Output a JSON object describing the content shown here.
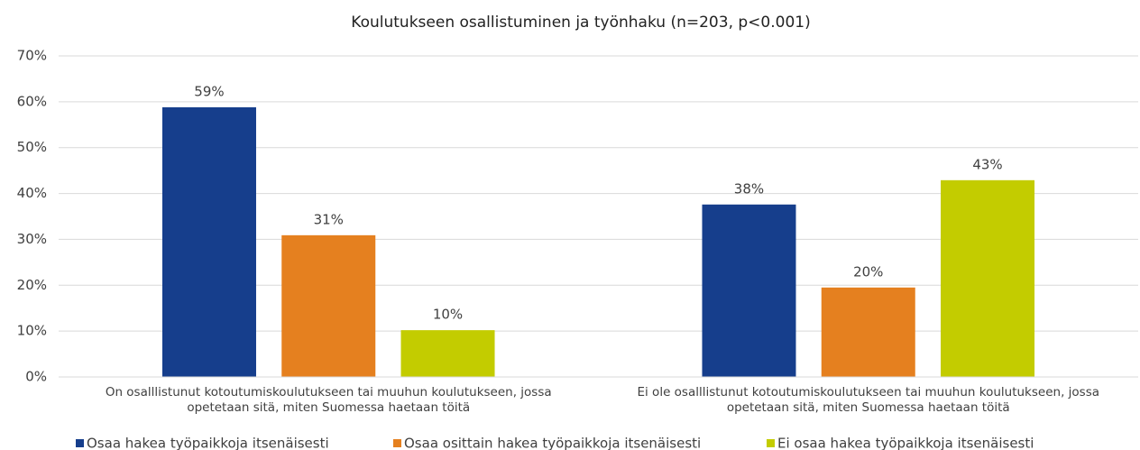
{
  "chart_data": {
    "type": "bar",
    "title": "Koulutukseen osallistuminen ja työnhaku (n=203, p<0.001)",
    "categories": [
      "On osalllistunut kotoutumiskoulutukseen tai muuhun koulutukseen, jossa\nopetetaan sitä, miten Suomessa haetaan töitä",
      "Ei ole osalllistunut kotoutumiskoulutukseen tai muuhun koulutukseen, jossa\nopetetaan sitä, miten Suomessa haetaan töitä"
    ],
    "series": [
      {
        "name": "Osaa hakea työpaikkoja itsenäisesti",
        "color": "#163e8c",
        "values": [
          58.8,
          37.6
        ],
        "value_labels": [
          "59%",
          "38%"
        ]
      },
      {
        "name": "Osaa osittain hakea työpaikkoja itsenäisesti",
        "color": "#e5801f",
        "values": [
          30.9,
          19.5
        ],
        "value_labels": [
          "31%",
          "20%"
        ]
      },
      {
        "name": "Ei osaa hakea työpaikkoja itsenäisesti",
        "color": "#c3cc00",
        "values": [
          10.2,
          42.9
        ],
        "value_labels": [
          "10%",
          "43%"
        ]
      }
    ],
    "ylim": [
      0,
      70
    ],
    "yticks": [
      {
        "value": 0,
        "label": "0%"
      },
      {
        "value": 10,
        "label": "10%"
      },
      {
        "value": 20,
        "label": "20%"
      },
      {
        "value": 30,
        "label": "30%"
      },
      {
        "value": 40,
        "label": "40%"
      },
      {
        "value": 50,
        "label": "50%"
      },
      {
        "value": 60,
        "label": "60%"
      },
      {
        "value": 70,
        "label": "70%"
      }
    ],
    "grid": true,
    "legend": "bottom"
  }
}
